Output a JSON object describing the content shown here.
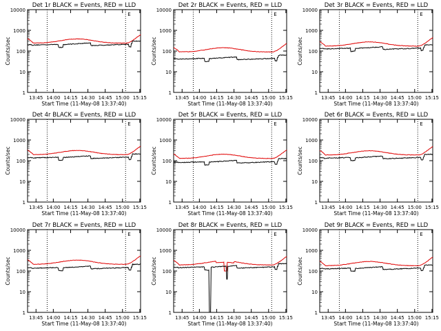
{
  "chart_data": [
    {
      "id": "det1",
      "title": "Det 1r BLACK = Events, RED = LLD",
      "events_level": 215,
      "lld_level": 320,
      "dip": false
    },
    {
      "id": "det2",
      "title": "Det 2r BLACK = Events, RED = LLD",
      "events_level": 45,
      "lld_level": 120,
      "dip": false
    },
    {
      "id": "det3",
      "title": "Det 3r BLACK = Events, RED = LLD",
      "events_level": 140,
      "lld_level": 230,
      "dip": false
    },
    {
      "id": "det4",
      "title": "Det 4r BLACK = Events, RED = LLD",
      "events_level": 150,
      "lld_level": 260,
      "dip": false
    },
    {
      "id": "det5",
      "title": "Det 5r BLACK = Events, RED = LLD",
      "events_level": 90,
      "lld_level": 170,
      "dip": false
    },
    {
      "id": "det6",
      "title": "Det 6r BLACK = Events, RED = LLD",
      "events_level": 145,
      "lld_level": 250,
      "dip": false
    },
    {
      "id": "det7",
      "title": "Det 7r BLACK = Events, RED = LLD",
      "events_level": 150,
      "lld_level": 280,
      "dip": false
    },
    {
      "id": "det8",
      "title": "Det 8r BLACK = Events, RED = LLD",
      "events_level": 160,
      "lld_level": 260,
      "dip": true
    },
    {
      "id": "det9",
      "title": "Det 9r BLACK = Events, RED = LLD",
      "events_level": 140,
      "lld_level": 240,
      "dip": false
    }
  ],
  "common": {
    "type": "line",
    "series": [
      {
        "name": "Events",
        "color": "#000000"
      },
      {
        "name": "LLD",
        "color": "#e00000"
      }
    ],
    "xlabel": "Start Time (11-May-08 13:37:40)",
    "ylabel": "Counts/sec",
    "x_ticks": [
      "13:45",
      "14:00",
      "14:15",
      "14:30",
      "14:45",
      "15:00",
      "15:15"
    ],
    "y_ticks": [
      "1",
      "10",
      "100",
      "1000",
      "10000"
    ],
    "y_scale": "log",
    "ylim": [
      1,
      10000
    ],
    "xlim_minutes": [
      0,
      98
    ],
    "dotted_lines_minutes": [
      17,
      85
    ],
    "legend_marker": "E",
    "x_tick_minutes": [
      7.33,
      22.33,
      37.33,
      52.33,
      67.33,
      82.33,
      97.33
    ]
  }
}
